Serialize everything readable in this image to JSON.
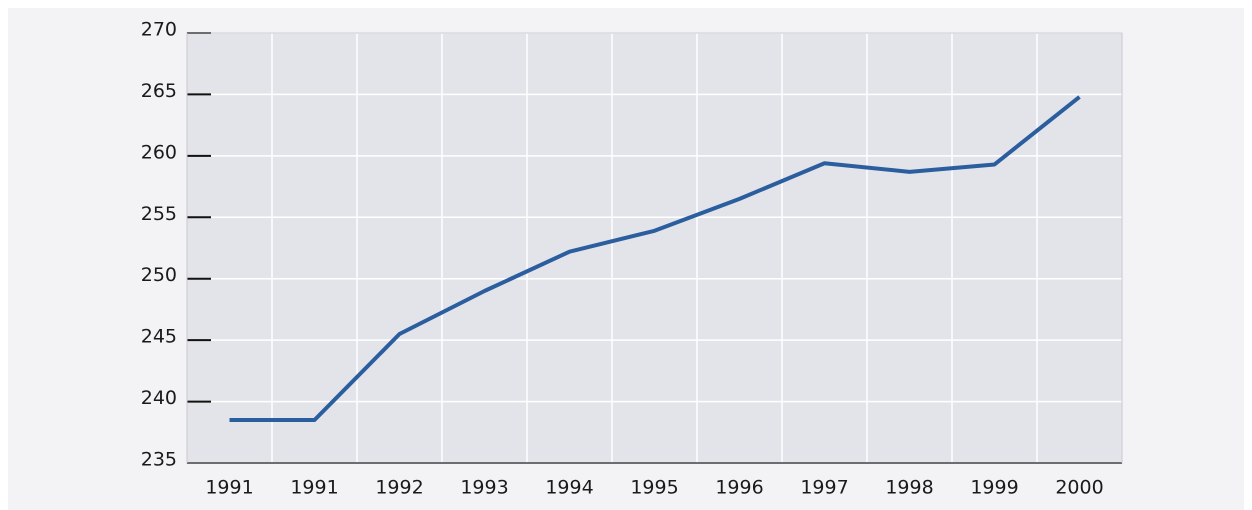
{
  "chart_data": {
    "type": "line",
    "categories": [
      "1991",
      "1991",
      "1992",
      "1993",
      "1994",
      "1995",
      "1996",
      "1997",
      "1998",
      "1999",
      "2000"
    ],
    "values": [
      238.5,
      238.5,
      245.5,
      249,
      252.2,
      253.9,
      256.5,
      259.4,
      258.7,
      259.3,
      264.8
    ],
    "color": "#2b5e9e",
    "ylim": [
      235,
      270
    ],
    "yticks": [
      235,
      240,
      245,
      250,
      255,
      260,
      265,
      270
    ],
    "grid": true
  }
}
